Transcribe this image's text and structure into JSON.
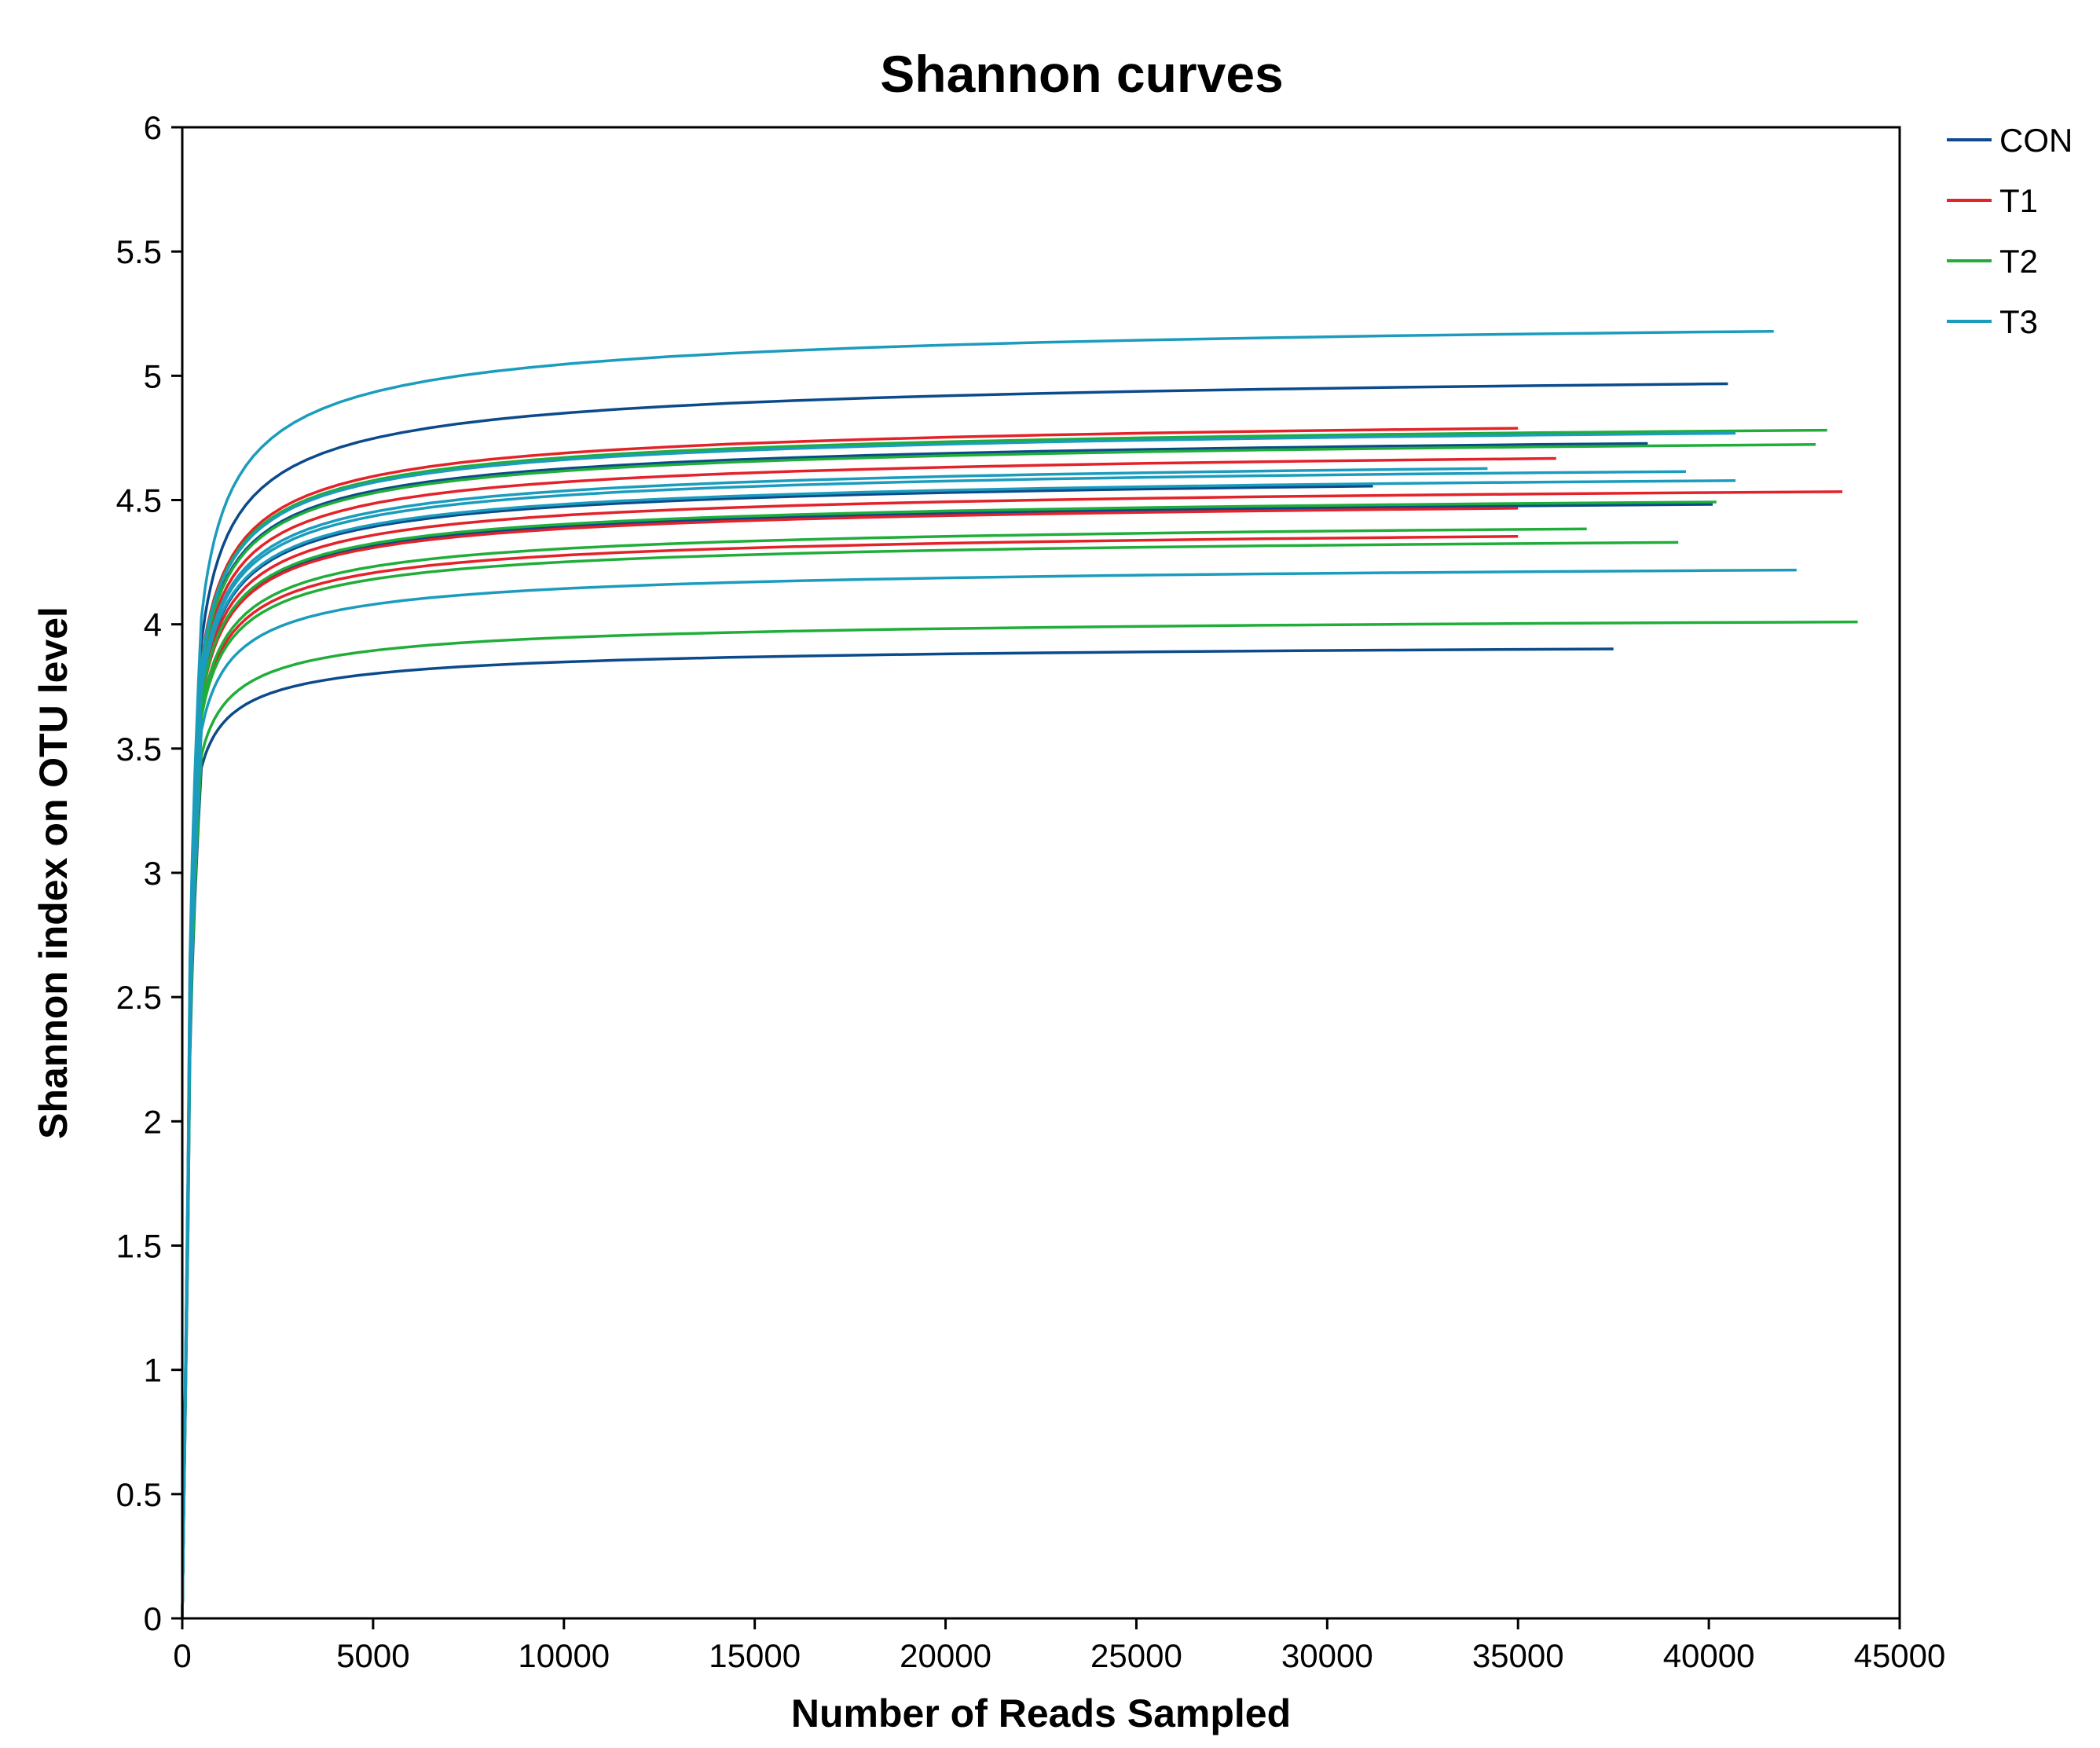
{
  "chart_data": {
    "type": "line",
    "title": "Shannon curves",
    "xlabel": "Number of Reads Sampled",
    "ylabel": "Shannon index on OTU level",
    "xlim": [
      0,
      45000
    ],
    "ylim": [
      0,
      6
    ],
    "xticks": [
      0,
      5000,
      10000,
      15000,
      20000,
      25000,
      30000,
      35000,
      40000,
      45000
    ],
    "yticks": [
      0,
      0.5,
      1,
      1.5,
      2,
      2.5,
      3,
      3.5,
      4,
      4.5,
      5,
      5.5,
      6
    ],
    "grid": false,
    "legend_position": "top-right (outside plot)",
    "groups": [
      {
        "name": "CON",
        "color": "#0b4a8b"
      },
      {
        "name": "T1",
        "color": "#e3222a"
      },
      {
        "name": "T2",
        "color": "#20ad3a"
      },
      {
        "name": "T3",
        "color": "#1b9cbd"
      }
    ],
    "series": [
      {
        "group": "CON",
        "plateau": 5.07,
        "max_x": 40500
      },
      {
        "group": "CON",
        "plateau": 4.82,
        "max_x": 38400
      },
      {
        "group": "CON",
        "plateau": 4.65,
        "max_x": 31200
      },
      {
        "group": "CON",
        "plateau": 4.56,
        "max_x": 40100
      },
      {
        "group": "CON",
        "plateau": 3.95,
        "max_x": 37500
      },
      {
        "group": "T1",
        "plateau": 4.89,
        "max_x": 35000
      },
      {
        "group": "T1",
        "plateau": 4.76,
        "max_x": 36000
      },
      {
        "group": "T1",
        "plateau": 4.61,
        "max_x": 43500
      },
      {
        "group": "T1",
        "plateau": 4.55,
        "max_x": 35000
      },
      {
        "group": "T1",
        "plateau": 4.43,
        "max_x": 35000
      },
      {
        "group": "T2",
        "plateau": 4.87,
        "max_x": 43100
      },
      {
        "group": "T2",
        "plateau": 4.81,
        "max_x": 42800
      },
      {
        "group": "T2",
        "plateau": 4.57,
        "max_x": 40200
      },
      {
        "group": "T2",
        "plateau": 4.46,
        "max_x": 36800
      },
      {
        "group": "T2",
        "plateau": 4.4,
        "max_x": 39200
      },
      {
        "group": "T2",
        "plateau": 4.06,
        "max_x": 43900
      },
      {
        "group": "T3",
        "plateau": 5.29,
        "max_x": 41700
      },
      {
        "group": "T3",
        "plateau": 4.86,
        "max_x": 40700
      },
      {
        "group": "T3",
        "plateau": 4.72,
        "max_x": 34200
      },
      {
        "group": "T3",
        "plateau": 4.7,
        "max_x": 39400
      },
      {
        "group": "T3",
        "plateau": 4.66,
        "max_x": 40700
      },
      {
        "group": "T3",
        "plateau": 4.28,
        "max_x": 42300
      }
    ]
  }
}
